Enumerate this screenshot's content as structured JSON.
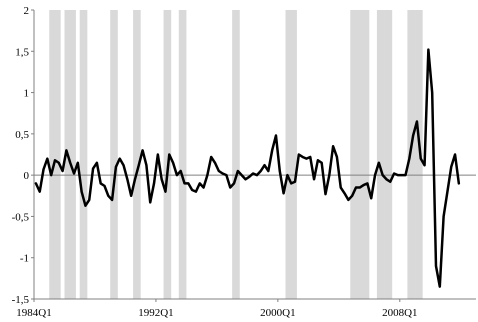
{
  "chart_data": {
    "type": "line",
    "title": "",
    "xlabel": "",
    "ylabel": "",
    "x_range": [
      "1984Q1",
      "2012Q4"
    ],
    "ylim": [
      -1.5,
      2
    ],
    "yticks": [
      -1.5,
      -1,
      -0.5,
      0,
      0.5,
      1,
      1.5,
      2
    ],
    "ytick_labels": [
      "-1,5",
      "-1",
      "-0,5",
      "0",
      "0,5",
      "1",
      "1,5",
      "2"
    ],
    "xtick_labels": [
      "1984Q1",
      "1992Q1",
      "2000Q1",
      "2008Q1"
    ],
    "zero_line": true,
    "grid": false,
    "legend": "none",
    "colors": {
      "line": "#000000",
      "band": "#d9d9d9",
      "axis": "#808080"
    },
    "shaded_periods": [
      [
        "1985Q1",
        "1985Q3"
      ],
      [
        "1986Q1",
        "1986Q3"
      ],
      [
        "1987Q1",
        "1987Q2"
      ],
      [
        "1989Q1",
        "1989Q2"
      ],
      [
        "1990Q3",
        "1990Q4"
      ],
      [
        "1992Q3",
        "1992Q4"
      ],
      [
        "1993Q3",
        "1993Q4"
      ],
      [
        "1997Q1",
        "1997Q2"
      ],
      [
        "2000Q3",
        "2001Q1"
      ],
      [
        "2004Q4",
        "2005Q4"
      ],
      [
        "2006Q3",
        "2006Q4"
      ],
      [
        "2007Q1",
        "2007Q2"
      ],
      [
        "2008Q3",
        "2008Q4"
      ],
      [
        "2009Q1",
        "2009Q2"
      ]
    ],
    "series": [
      {
        "values": [
          -0.1,
          -0.2,
          0.07,
          0.2,
          0.0,
          0.18,
          0.15,
          0.05,
          0.3,
          0.15,
          0.02,
          0.15,
          -0.2,
          -0.37,
          -0.3,
          0.08,
          0.15,
          -0.1,
          -0.13,
          -0.25,
          -0.3,
          0.1,
          0.2,
          0.12,
          -0.05,
          -0.25,
          -0.05,
          0.12,
          0.3,
          0.12,
          -0.33,
          -0.1,
          0.25,
          -0.05,
          -0.2,
          0.25,
          0.15,
          0.0,
          0.05,
          -0.1,
          -0.1,
          -0.18,
          -0.2,
          -0.1,
          -0.15,
          0.0,
          0.22,
          0.15,
          0.05,
          0.02,
          0.0,
          -0.15,
          -0.1,
          0.05,
          0.0,
          -0.05,
          -0.02,
          0.02,
          0.0,
          0.05,
          0.12,
          0.05,
          0.3,
          0.48,
          0.05,
          -0.22,
          0.0,
          -0.1,
          -0.08,
          0.25,
          0.22,
          0.2,
          0.22,
          -0.05,
          0.18,
          0.15,
          -0.23,
          0.0,
          0.35,
          0.22,
          -0.15,
          -0.22,
          -0.3,
          -0.25,
          -0.15,
          -0.15,
          -0.12,
          -0.1,
          -0.28,
          0.0,
          0.15,
          0.0,
          -0.05,
          -0.08,
          0.02,
          0.0,
          0.0,
          0.0,
          0.2,
          0.48,
          0.65,
          0.2,
          0.12,
          1.52,
          1.0,
          -1.1,
          -1.35,
          -0.5,
          -0.2,
          0.1,
          0.25,
          -0.1
        ]
      }
    ]
  }
}
